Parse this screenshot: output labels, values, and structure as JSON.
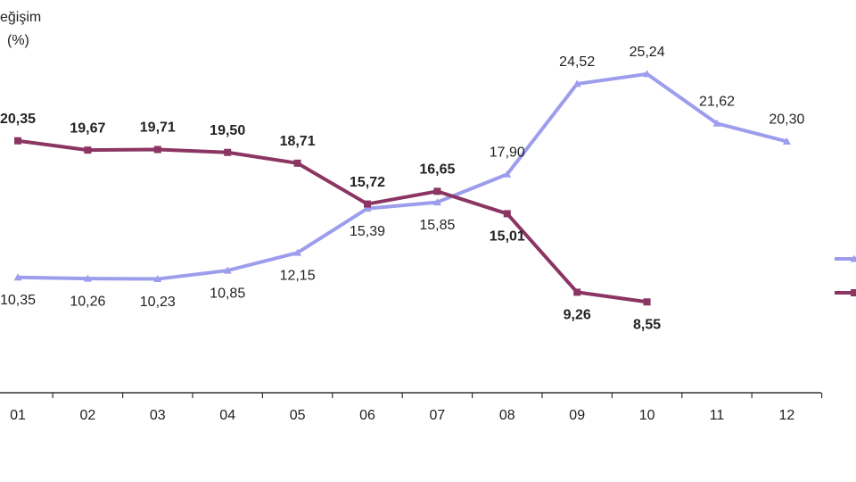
{
  "chart_data": {
    "type": "line",
    "ylabel": [
      "eğişim",
      "(%)"
    ],
    "categories": [
      "01",
      "02",
      "03",
      "04",
      "05",
      "06",
      "07",
      "08",
      "09",
      "10",
      "11",
      "12"
    ],
    "ylim": [
      1.9,
      30.66
    ],
    "series": [
      {
        "color": "#9d9ded",
        "marker": "triangle",
        "values": [
          10.35,
          10.26,
          10.23,
          10.85,
          12.15,
          15.39,
          15.85,
          17.9,
          24.52,
          25.24,
          21.62,
          20.3
        ],
        "value_labels": [
          "10,35",
          "10,26",
          "10,23",
          "10,85",
          "12,15",
          "15,39",
          "15,85",
          "17,90",
          "24,52",
          "25,24",
          "21,62",
          "20,30"
        ]
      },
      {
        "color": "#8b3563",
        "marker": "square",
        "values": [
          20.35,
          19.67,
          19.71,
          19.5,
          18.71,
          15.72,
          16.65,
          15.01,
          9.26,
          8.55,
          null,
          null
        ],
        "value_labels": [
          "20,35",
          "19,67",
          "19,71",
          "19,50",
          "18,71",
          "15,72",
          "16,65",
          "15,01",
          "9,26",
          "8,55",
          null,
          null
        ]
      }
    ]
  }
}
